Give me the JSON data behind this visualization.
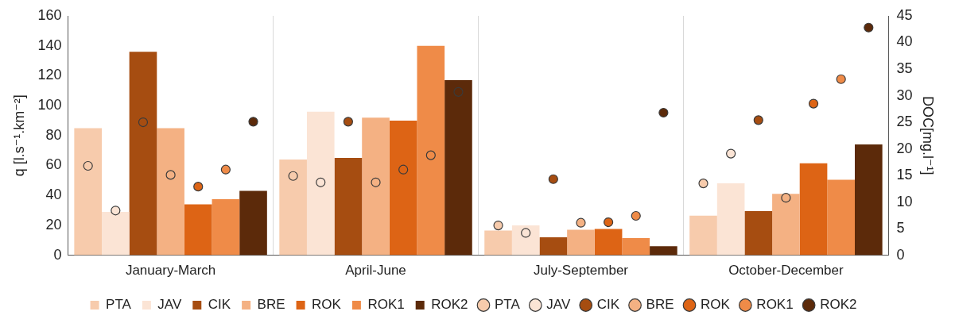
{
  "chart_data": {
    "type": "bar",
    "categories": [
      "January-March",
      "April-June",
      "July-September",
      "October-December"
    ],
    "ylabel": "q [l.s⁻¹.km⁻²]",
    "y2label": "DOC[mg.l⁻¹]",
    "ylim": [
      0,
      160
    ],
    "yticks": [
      0,
      20,
      40,
      60,
      80,
      100,
      120,
      140,
      160
    ],
    "y2lim": [
      0,
      45
    ],
    "y2ticks": [
      0,
      5,
      10,
      15,
      20,
      25,
      30,
      35,
      40,
      45
    ],
    "grid": "x",
    "legend": "bottom",
    "marker": "circle",
    "series": [
      {
        "name": "PTA",
        "color": "#f7cbac",
        "values": [
          85,
          64,
          16.5,
          26.5
        ]
      },
      {
        "name": "JAV",
        "color": "#fbe4d5",
        "values": [
          29,
          96,
          20,
          48
        ]
      },
      {
        "name": "CIK",
        "color": "#a64d11",
        "values": [
          136,
          65,
          12,
          29.5
        ]
      },
      {
        "name": "BRE",
        "color": "#f4b183",
        "values": [
          85,
          92,
          17,
          41
        ]
      },
      {
        "name": "ROK",
        "color": "#dd6415",
        "values": [
          34,
          90,
          17.5,
          61.5
        ]
      },
      {
        "name": "ROK1",
        "color": "#ef8b48",
        "values": [
          37.5,
          140,
          11.5,
          50.5
        ]
      },
      {
        "name": "ROK2",
        "color": "#5c2a0a",
        "values": [
          43,
          117,
          6,
          74
        ]
      },
      {
        "name": "PTA",
        "type": "scatter",
        "axis": "y2",
        "color": "#f7cbac",
        "x": [
          "January-March",
          "April-June",
          "July-September",
          "October-December"
        ],
        "values": [
          16.8,
          14.9,
          5.6,
          13.5
        ]
      },
      {
        "name": "JAV",
        "type": "scatter",
        "axis": "y2",
        "color": "#fbe4d5",
        "x": [
          "January-March",
          "April-June",
          "July-September",
          "October-December"
        ],
        "values": [
          8.4,
          13.7,
          4.2,
          19.1
        ]
      },
      {
        "name": "CIK",
        "type": "scatter",
        "axis": "y2",
        "color": "#a64d11",
        "x": [
          "January-March",
          "April-June",
          "July-September",
          "October-December"
        ],
        "values": [
          25,
          25.1,
          14.3,
          25.4
        ]
      },
      {
        "name": "BRE",
        "type": "scatter",
        "axis": "y2",
        "color": "#f4b183",
        "x": [
          "January-March",
          "April-June",
          "July-September",
          "October-December"
        ],
        "values": [
          15.1,
          13.7,
          6.1,
          10.8
        ]
      },
      {
        "name": "ROK",
        "type": "scatter",
        "axis": "y2",
        "color": "#dd6415",
        "x": [
          "January-March",
          "April-June",
          "July-September",
          "October-December"
        ],
        "values": [
          12.9,
          16.1,
          6.2,
          28.5
        ]
      },
      {
        "name": "ROK1",
        "type": "scatter",
        "axis": "y2",
        "color": "#ef8b48",
        "x": [
          "January-March",
          "April-June",
          "July-September",
          "October-December"
        ],
        "values": [
          16.1,
          18.8,
          7.4,
          33.1
        ]
      },
      {
        "name": "ROK2",
        "type": "scatter",
        "axis": "y2",
        "color": "#5c2a0a",
        "x": [
          "January-March",
          "April-June",
          "July-September",
          "October-December"
        ],
        "values": [
          25.1,
          30.7,
          26.8,
          42.8
        ]
      }
    ]
  }
}
